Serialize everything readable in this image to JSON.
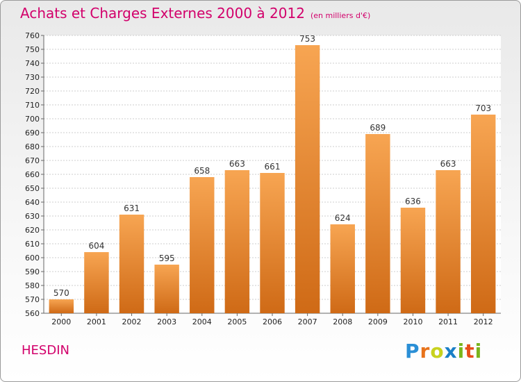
{
  "header": {
    "title": "Achats et Charges Externes 2000 à 2012",
    "subtitle": "(en milliers d'€)"
  },
  "commune": "HESDIN",
  "logo": {
    "text": "Proxiti",
    "letters": [
      "P",
      "r",
      "o",
      "x",
      "i",
      "t",
      "i"
    ]
  },
  "colors": {
    "title": "#d2006b",
    "bar_top": "#f7a552",
    "bar_bottom": "#cf6a16"
  },
  "chart_data": {
    "type": "bar",
    "title": "Achats et Charges Externes 2000 à 2012",
    "subtitle": "(en milliers d'€)",
    "xlabel": "",
    "ylabel": "",
    "categories": [
      "2000",
      "2001",
      "2002",
      "2003",
      "2004",
      "2005",
      "2006",
      "2007",
      "2008",
      "2009",
      "2010",
      "2011",
      "2012"
    ],
    "values": [
      570,
      604,
      631,
      595,
      658,
      663,
      661,
      753,
      624,
      689,
      636,
      663,
      703
    ],
    "ylim": [
      560,
      760
    ],
    "ytick_step": 10,
    "grid": true,
    "legend": "none"
  }
}
